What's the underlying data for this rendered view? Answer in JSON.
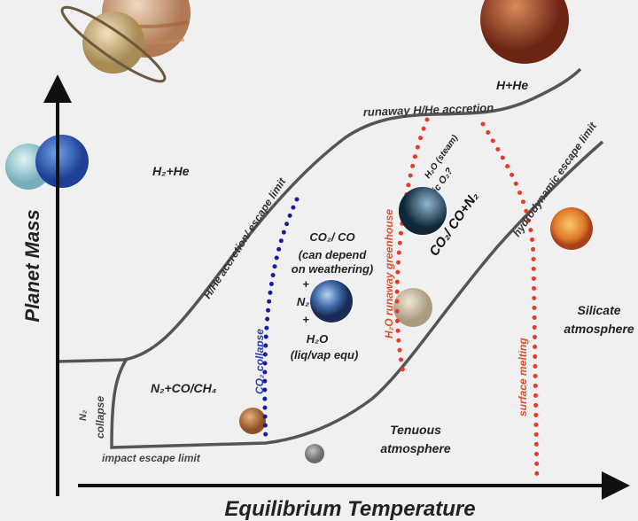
{
  "axes": {
    "y_label": "Planet Mass",
    "x_label": "Equilibrium Temperature"
  },
  "boundaries": {
    "runaway": "runaway H/He accretion",
    "hhe_escape": "H/He accretion/ escape limit",
    "hydro_escape": "hydrodynamic escape limit",
    "impact_escape": "impact escape limit",
    "n2_collapse_1": "N₂",
    "n2_collapse_2": "collapse",
    "co2_collapse": "CO₂ collapse",
    "h2o_greenhouse": "H₂O runaway greenhouse",
    "surface_melting": "surface melting"
  },
  "regions": {
    "h2he_left": "H₂+He",
    "h2he_top": "H+He",
    "n2_co_ch4": "N₂+CO/CH₄",
    "co2_co": "CO₂/ CO",
    "weathering_1": "(can depend",
    "weathering_2": "on weathering)",
    "plus1": "+",
    "n2": "N₂",
    "plus2": "+",
    "h2o": "H₂O",
    "liqvap": "(liq/vap equ)",
    "steam": "H₂O (steam)",
    "abiotic": "abiotic O₂?",
    "co2_co_n2": "CO₂/ CO+N₂",
    "tenuous_1": "Tenuous",
    "tenuous_2": "atmosphere",
    "silicate_1": "Silicate",
    "silicate_2": "atmosphere"
  },
  "colors": {
    "boundary": "#555555",
    "co2_dots": "#1a1aa0",
    "h2o_dots": "#e83a2a"
  }
}
